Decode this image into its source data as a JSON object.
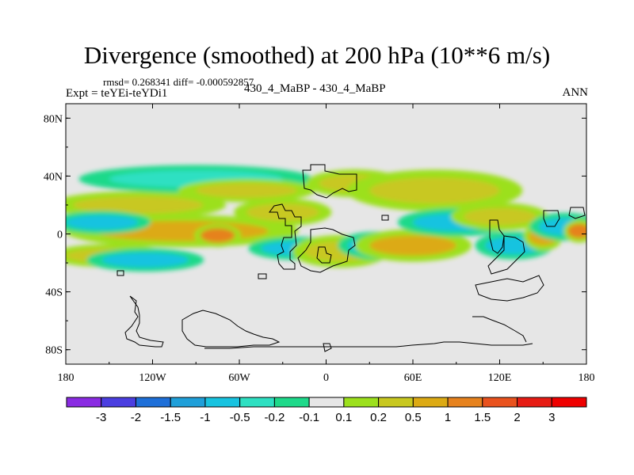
{
  "chart_data": {
    "type": "heatmap",
    "title": "Divergence (smoothed) at 200 hPa (10**6 m/s)",
    "stats_label": "rmsd= 0.268341 diff= -0.000592857",
    "experiment_label": "Expt = teYEi-teYDi1",
    "models_label": "430_4_MaBP - 430_4_MaBP",
    "season": "ANN",
    "x_ticks": [
      "180",
      "120W",
      "60W",
      "0",
      "60E",
      "120E",
      "180"
    ],
    "x_tick_values": [
      -180,
      -120,
      -60,
      0,
      60,
      120,
      180
    ],
    "y_ticks": [
      "80N",
      "40N",
      "0",
      "40S",
      "80S"
    ],
    "y_tick_values": [
      80,
      40,
      0,
      -40,
      -80
    ],
    "xlim": [
      -180,
      180
    ],
    "ylim": [
      -90,
      90
    ],
    "contour_levels": [
      "-3",
      "-2",
      "-1.5",
      "-1",
      "-0.5",
      "-0.2",
      "-0.1",
      "0.1",
      "0.2",
      "0.5",
      "1",
      "1.5",
      "2",
      "3"
    ],
    "colorbar_colors": [
      "#8a2be2",
      "#4b3ee0",
      "#1e6fd8",
      "#1f9fd9",
      "#18c3e0",
      "#2ee0c2",
      "#1ed98a",
      "#e6e6e6",
      "#9ce01d",
      "#c8c820",
      "#dcaa14",
      "#e6821e",
      "#e9521e",
      "#e61c14",
      "#ee0000"
    ],
    "field_blobs": [
      {
        "lon": -130,
        "lat": 20,
        "rx": 45,
        "ry": 6,
        "value": 0.3
      },
      {
        "lon": -100,
        "lat": 2,
        "rx": 60,
        "ry": 7,
        "value": 0.8
      },
      {
        "lon": -75,
        "lat": -1,
        "rx": 12,
        "ry": 5,
        "value": 1.5
      },
      {
        "lon": -155,
        "lat": 8,
        "rx": 25,
        "ry": 5,
        "value": -0.5
      },
      {
        "lon": -150,
        "lat": -15,
        "rx": 30,
        "ry": 5,
        "value": 0.5
      },
      {
        "lon": -125,
        "lat": -18,
        "rx": 30,
        "ry": 5,
        "value": -0.5
      },
      {
        "lon": -90,
        "lat": 38,
        "rx": 60,
        "ry": 6,
        "value": -0.2
      },
      {
        "lon": -55,
        "lat": 30,
        "rx": 35,
        "ry": 5,
        "value": 0.5
      },
      {
        "lon": -30,
        "lat": 15,
        "rx": 25,
        "ry": 6,
        "value": 0.3
      },
      {
        "lon": -20,
        "lat": -10,
        "rx": 25,
        "ry": 5,
        "value": -0.5
      },
      {
        "lon": 10,
        "lat": -12,
        "rx": 25,
        "ry": 7,
        "value": 0.5
      },
      {
        "lon": 35,
        "lat": -8,
        "rx": 20,
        "ry": 6,
        "value": -0.5
      },
      {
        "lon": 60,
        "lat": -8,
        "rx": 30,
        "ry": 7,
        "value": 0.8
      },
      {
        "lon": 20,
        "lat": 35,
        "rx": 25,
        "ry": 6,
        "value": 0.4
      },
      {
        "lon": 75,
        "lat": 30,
        "rx": 45,
        "ry": 9,
        "value": 0.5
      },
      {
        "lon": 90,
        "lat": 8,
        "rx": 30,
        "ry": 6,
        "value": -0.5
      },
      {
        "lon": 120,
        "lat": 12,
        "rx": 25,
        "ry": 6,
        "value": 0.3
      },
      {
        "lon": 130,
        "lat": -8,
        "rx": 20,
        "ry": 6,
        "value": -0.5
      },
      {
        "lon": 150,
        "lat": -2,
        "rx": 10,
        "ry": 6,
        "value": 0.8
      },
      {
        "lon": 165,
        "lat": 5,
        "rx": 18,
        "ry": 6,
        "value": -0.5
      },
      {
        "lon": 175,
        "lat": 2,
        "rx": 8,
        "ry": 5,
        "value": 1.2
      }
    ]
  }
}
